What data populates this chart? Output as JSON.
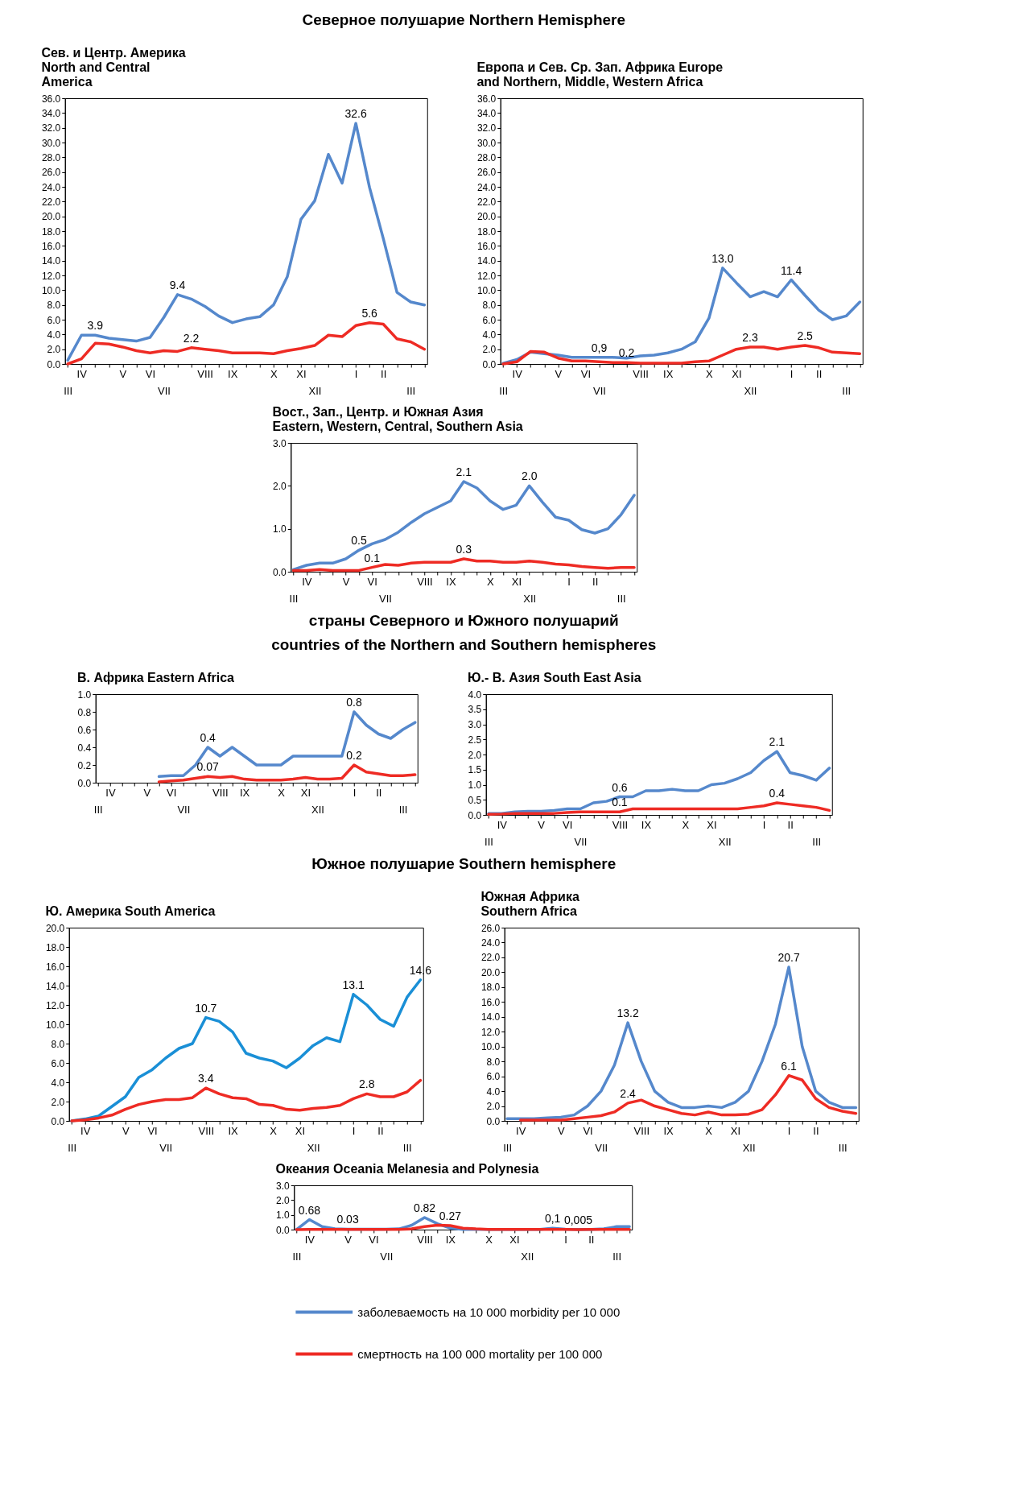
{
  "chart_data": [
    {
      "type": "line",
      "title": "Сев. и Центр. Америка\nNorth and Central\nAmerica",
      "annotations": [
        "Северное полушарие   Northern Hemisphere"
      ],
      "categories": [
        "\nIII",
        "IV",
        null,
        null,
        "V",
        null,
        "VI",
        "\nVII",
        null,
        null,
        "VIII",
        null,
        "IX",
        null,
        null,
        "X",
        null,
        "XI",
        "\nXII",
        null,
        null,
        "I",
        null,
        "II",
        null,
        "\nIII",
        null
      ],
      "ylim": [
        0,
        36
      ],
      "yticks": [
        {
          "value": 0,
          "label": "0.0"
        },
        {
          "value": 2,
          "label": "2.0"
        },
        {
          "value": 4,
          "label": "4.0"
        },
        {
          "value": 6,
          "label": "6.0"
        },
        {
          "value": 8,
          "label": "8.0"
        },
        {
          "value": 10,
          "label": "10.0"
        },
        {
          "value": 12,
          "label": "12.0"
        },
        {
          "value": 14,
          "label": "14.0"
        },
        {
          "value": 16,
          "label": "16.0"
        },
        {
          "value": 18,
          "label": "18.0"
        },
        {
          "value": 20,
          "label": "20.0"
        },
        {
          "value": 22,
          "label": "22.0"
        },
        {
          "value": 24,
          "label": "24.0"
        },
        {
          "value": 26,
          "label": "26.0"
        },
        {
          "value": 28,
          "label": "28.0"
        },
        {
          "value": 30,
          "label": "30.0"
        },
        {
          "value": 32,
          "label": "32.0"
        },
        {
          "value": 34,
          "label": "34.0"
        },
        {
          "value": 36,
          "label": "36.0"
        }
      ],
      "series": [
        {
          "color": "#5588cc",
          "values": [
            0.5,
            3.9,
            3.9,
            3.5,
            3.3,
            3.1,
            3.6,
            6.3,
            9.4,
            8.8,
            7.8,
            6.5,
            5.6,
            6.1,
            6.4,
            8.0,
            11.8,
            19.6,
            22.1,
            28.4,
            24.5,
            32.6,
            23.9,
            17.0,
            9.7,
            8.4,
            8.0
          ],
          "value_labels": [
            null,
            null,
            "3.9",
            null,
            null,
            null,
            null,
            null,
            "9.4",
            null,
            null,
            null,
            null,
            null,
            null,
            null,
            null,
            null,
            null,
            null,
            null,
            "32.6",
            null,
            null,
            null,
            null,
            null
          ]
        },
        {
          "color": "#ee2b24",
          "values": [
            0.0,
            0.7,
            2.8,
            2.7,
            2.3,
            1.8,
            1.5,
            1.8,
            1.7,
            2.2,
            2.0,
            1.8,
            1.5,
            1.5,
            1.5,
            1.4,
            1.8,
            2.1,
            2.5,
            3.9,
            3.7,
            5.2,
            5.6,
            5.4,
            3.4,
            3.0,
            2.0
          ],
          "value_labels": [
            null,
            null,
            null,
            null,
            null,
            null,
            null,
            null,
            null,
            "2.2",
            null,
            null,
            null,
            null,
            null,
            null,
            null,
            null,
            null,
            null,
            null,
            null,
            "5.6",
            null,
            null,
            null,
            null
          ]
        }
      ]
    },
    {
      "type": "line",
      "title": "Европа и Сев. Ср. Зап. Африка  Europe\nand Northern, Middle, Western Africa",
      "categories": [
        "\nIII",
        "IV",
        null,
        null,
        "V",
        null,
        "VI",
        "\nVII",
        null,
        null,
        "VIII",
        null,
        "IX",
        null,
        null,
        "X",
        null,
        "XI",
        "\nXII",
        null,
        null,
        "I",
        null,
        "II",
        null,
        "\nIII",
        null
      ],
      "ylim": [
        0,
        36
      ],
      "yticks": [
        {
          "value": 0,
          "label": "0.0"
        },
        {
          "value": 2,
          "label": "2.0"
        },
        {
          "value": 4,
          "label": "4.0"
        },
        {
          "value": 6,
          "label": "6.0"
        },
        {
          "value": 8,
          "label": "8.0"
        },
        {
          "value": 10,
          "label": "10.0"
        },
        {
          "value": 12,
          "label": "12.0"
        },
        {
          "value": 14,
          "label": "14.0"
        },
        {
          "value": 16,
          "label": "16.0"
        },
        {
          "value": 18,
          "label": "18.0"
        },
        {
          "value": 20,
          "label": "20.0"
        },
        {
          "value": 22,
          "label": "22.0"
        },
        {
          "value": 24,
          "label": "24.0"
        },
        {
          "value": 26,
          "label": "26.0"
        },
        {
          "value": 28,
          "label": "28.0"
        },
        {
          "value": 30,
          "label": "30.0"
        },
        {
          "value": 32,
          "label": "32.0"
        },
        {
          "value": 34,
          "label": "34.0"
        },
        {
          "value": 36,
          "label": "36.0"
        }
      ],
      "series": [
        {
          "color": "#5588cc",
          "values": [
            0.1,
            0.6,
            1.6,
            1.4,
            1.2,
            0.9,
            0.9,
            0.9,
            0.9,
            0.8,
            1.1,
            1.2,
            1.5,
            2.0,
            3.0,
            6.2,
            13.0,
            11.0,
            9.1,
            9.8,
            9.1,
            11.4,
            9.3,
            7.3,
            6.0,
            6.5,
            8.4
          ],
          "value_labels": [
            null,
            null,
            null,
            null,
            null,
            null,
            null,
            "0,9",
            null,
            null,
            null,
            null,
            null,
            null,
            null,
            null,
            "13.0",
            null,
            null,
            null,
            null,
            "11.4",
            null,
            null,
            null,
            null,
            null
          ]
        },
        {
          "color": "#ee2b24",
          "values": [
            0.0,
            0.3,
            1.7,
            1.6,
            0.8,
            0.4,
            0.4,
            0.3,
            0.2,
            0.2,
            0.1,
            0.1,
            0.1,
            0.1,
            0.3,
            0.4,
            1.2,
            2.0,
            2.3,
            2.3,
            2.0,
            2.3,
            2.5,
            2.2,
            1.6,
            1.5,
            1.4
          ],
          "value_labels": [
            null,
            null,
            null,
            null,
            null,
            null,
            null,
            null,
            null,
            "0.2",
            null,
            null,
            null,
            null,
            null,
            null,
            null,
            null,
            "2.3",
            null,
            null,
            null,
            "2.5",
            null,
            null,
            null,
            null
          ]
        }
      ]
    },
    {
      "type": "line",
      "title": "Вост., Зап., Центр. и Южная Азия\nEastern, Western, Central, Southern Asia",
      "categories": [
        "\nIII",
        "IV",
        null,
        null,
        "V",
        null,
        "VI",
        "\nVII",
        null,
        null,
        "VIII",
        null,
        "IX",
        null,
        null,
        "X",
        null,
        "XI",
        "\nXII",
        null,
        null,
        "I",
        null,
        "II",
        null,
        "\nIII",
        null
      ],
      "ylim": [
        0,
        3
      ],
      "yticks": [
        {
          "value": 0,
          "label": "0.0"
        },
        {
          "value": 1,
          "label": "1.0"
        },
        {
          "value": 2,
          "label": "2.0"
        },
        {
          "value": 3,
          "label": "3.0"
        }
      ],
      "series": [
        {
          "color": "#5588cc",
          "values": [
            0.05,
            0.15,
            0.2,
            0.2,
            0.3,
            0.5,
            0.65,
            0.75,
            0.92,
            1.15,
            1.35,
            1.5,
            1.65,
            2.1,
            1.95,
            1.65,
            1.45,
            1.55,
            2.0,
            1.62,
            1.27,
            1.2,
            0.98,
            0.9,
            1.0,
            1.33,
            1.78
          ],
          "value_labels": [
            null,
            null,
            null,
            null,
            null,
            "0.5",
            null,
            null,
            null,
            null,
            null,
            null,
            null,
            "2.1",
            null,
            null,
            null,
            null,
            "2.0",
            null,
            null,
            null,
            null,
            null,
            null,
            null,
            null
          ]
        },
        {
          "color": "#ee2b24",
          "values": [
            0.03,
            0.03,
            0.05,
            0.03,
            0.03,
            0.03,
            0.1,
            0.17,
            0.15,
            0.2,
            0.22,
            0.22,
            0.22,
            0.3,
            0.25,
            0.25,
            0.22,
            0.22,
            0.25,
            0.22,
            0.18,
            0.16,
            0.12,
            0.1,
            0.08,
            0.1,
            0.1
          ],
          "value_labels": [
            null,
            null,
            null,
            null,
            null,
            null,
            "0.1",
            null,
            null,
            null,
            null,
            null,
            null,
            "0.3",
            null,
            null,
            null,
            null,
            null,
            null,
            null,
            null,
            null,
            null,
            null,
            null,
            null
          ]
        }
      ]
    },
    {
      "type": "line",
      "title": "В. Африка   Eastern Africa",
      "annotations": [
        "страны Северного и Южного полушарий\ncountries of the Northern and Southern hemispheres"
      ],
      "categories": [
        "\nIII",
        "IV",
        null,
        null,
        "V",
        null,
        "VI",
        "\nVII",
        null,
        null,
        "VIII",
        null,
        "IX",
        null,
        null,
        "X",
        null,
        "XI",
        "\nXII",
        null,
        null,
        "I",
        null,
        "II",
        null,
        "\nIII",
        null
      ],
      "ylim": [
        0,
        1
      ],
      "yticks": [
        {
          "value": 0,
          "label": "0.0"
        },
        0.2,
        0.4,
        0.6,
        0.8,
        {
          "value": 1,
          "label": "1.0"
        }
      ],
      "series": [
        {
          "color": "#5588cc",
          "values": [
            null,
            null,
            null,
            null,
            null,
            0.07,
            0.08,
            0.08,
            0.2,
            0.4,
            0.3,
            0.4,
            0.3,
            0.2,
            0.2,
            0.2,
            0.3,
            0.3,
            0.3,
            0.3,
            0.3,
            0.8,
            0.65,
            0.55,
            0.5,
            0.6,
            0.68
          ],
          "value_labels": [
            null,
            null,
            null,
            null,
            null,
            null,
            null,
            null,
            null,
            "0.4",
            null,
            null,
            null,
            null,
            null,
            null,
            null,
            null,
            null,
            null,
            null,
            "0.8",
            null,
            null,
            null,
            null,
            null
          ]
        },
        {
          "color": "#ee2b24",
          "values": [
            null,
            null,
            null,
            null,
            null,
            0.01,
            0.02,
            0.03,
            0.05,
            0.07,
            0.06,
            0.07,
            0.04,
            0.03,
            0.03,
            0.03,
            0.04,
            0.06,
            0.04,
            0.04,
            0.05,
            0.2,
            0.12,
            0.1,
            0.08,
            0.08,
            0.09
          ],
          "value_labels": [
            null,
            null,
            null,
            null,
            null,
            null,
            null,
            null,
            null,
            "0.07",
            null,
            null,
            null,
            null,
            null,
            null,
            null,
            null,
            null,
            null,
            null,
            "0.2",
            null,
            null,
            null,
            null,
            null
          ]
        }
      ]
    },
    {
      "type": "line",
      "title": "Ю.- В. Азия   South East Asia",
      "categories": [
        "\nIII",
        "IV",
        null,
        null,
        "V",
        null,
        "VI",
        "\nVII",
        null,
        null,
        "VIII",
        null,
        "IX",
        null,
        null,
        "X",
        null,
        "XI",
        "\nXII",
        null,
        null,
        "I",
        null,
        "II",
        null,
        "\nIII",
        null
      ],
      "ylim": [
        0,
        4
      ],
      "yticks": [
        {
          "value": 0,
          "label": "0.0"
        },
        0.5,
        {
          "value": 1,
          "label": "1.0"
        },
        1.5,
        {
          "value": 2,
          "label": "2.0"
        },
        2.5,
        {
          "value": 3,
          "label": "3.0"
        },
        3.5,
        {
          "value": 4,
          "label": "4.0"
        }
      ],
      "series": [
        {
          "color": "#5588cc",
          "values": [
            0.05,
            0.05,
            0.1,
            0.12,
            0.12,
            0.15,
            0.2,
            0.2,
            0.4,
            0.45,
            0.6,
            0.6,
            0.8,
            0.8,
            0.85,
            0.8,
            0.8,
            1.0,
            1.05,
            1.2,
            1.4,
            1.8,
            2.1,
            1.4,
            1.3,
            1.15,
            1.55
          ],
          "value_labels": [
            null,
            null,
            null,
            null,
            null,
            null,
            null,
            null,
            null,
            null,
            "0.6",
            null,
            null,
            null,
            null,
            null,
            null,
            null,
            null,
            null,
            null,
            null,
            "2.1",
            null,
            null,
            null,
            null
          ]
        },
        {
          "color": "#ee2b24",
          "values": [
            0.02,
            0.03,
            0.05,
            0.05,
            0.05,
            0.05,
            0.08,
            0.1,
            0.1,
            0.1,
            0.1,
            0.2,
            0.2,
            0.2,
            0.2,
            0.2,
            0.2,
            0.2,
            0.2,
            0.2,
            0.25,
            0.3,
            0.4,
            0.35,
            0.3,
            0.25,
            0.15
          ],
          "value_labels": [
            null,
            null,
            null,
            null,
            null,
            null,
            null,
            null,
            null,
            null,
            "0.1",
            null,
            null,
            null,
            null,
            null,
            null,
            null,
            null,
            null,
            null,
            null,
            "0.4",
            null,
            null,
            null,
            null
          ]
        }
      ]
    },
    {
      "type": "line",
      "title": "Ю. Америка    South America",
      "annotations": [
        "Южное полушарие   Southern hemisphere"
      ],
      "categories": [
        "\nIII",
        "IV",
        null,
        null,
        "V",
        null,
        "VI",
        "\nVII",
        null,
        null,
        "VIII",
        null,
        "IX",
        null,
        null,
        "X",
        null,
        "XI",
        "\nXII",
        null,
        null,
        "I",
        null,
        "II",
        null,
        "\nIII",
        null
      ],
      "ylim": [
        0,
        20
      ],
      "yticks": [
        {
          "value": 0,
          "label": "0.0"
        },
        {
          "value": 2,
          "label": "2.0"
        },
        {
          "value": 4,
          "label": "4.0"
        },
        {
          "value": 6,
          "label": "6.0"
        },
        {
          "value": 8,
          "label": "8.0"
        },
        {
          "value": 10,
          "label": "10.0"
        },
        {
          "value": 12,
          "label": "12.0"
        },
        {
          "value": 14,
          "label": "14.0"
        },
        {
          "value": 16,
          "label": "16.0"
        },
        {
          "value": 18,
          "label": "18.0"
        },
        {
          "value": 20,
          "label": "20.0"
        }
      ],
      "series": [
        {
          "color": "#1a8fd6",
          "values": [
            0.0,
            0.2,
            0.5,
            1.5,
            2.5,
            4.5,
            5.3,
            6.5,
            7.5,
            8.0,
            10.7,
            10.3,
            9.2,
            7.0,
            6.5,
            6.2,
            5.5,
            6.5,
            7.8,
            8.6,
            8.2,
            13.1,
            12.0,
            10.5,
            9.8,
            12.8,
            14.6
          ],
          "value_labels": [
            null,
            null,
            null,
            null,
            null,
            null,
            null,
            null,
            null,
            null,
            "10.7",
            null,
            null,
            null,
            null,
            null,
            null,
            null,
            null,
            null,
            null,
            "13.1",
            null,
            null,
            null,
            null,
            "14.6"
          ]
        },
        {
          "color": "#ee2b24",
          "values": [
            0.0,
            0.1,
            0.3,
            0.6,
            1.2,
            1.7,
            2.0,
            2.2,
            2.2,
            2.4,
            3.4,
            2.8,
            2.4,
            2.3,
            1.7,
            1.6,
            1.2,
            1.1,
            1.3,
            1.4,
            1.6,
            2.3,
            2.8,
            2.5,
            2.5,
            3.0,
            4.2
          ],
          "value_labels": [
            null,
            null,
            null,
            null,
            null,
            null,
            null,
            null,
            null,
            null,
            "3.4",
            null,
            null,
            null,
            null,
            null,
            null,
            null,
            null,
            null,
            null,
            null,
            "2.8",
            null,
            null,
            null,
            null
          ]
        }
      ]
    },
    {
      "type": "line",
      "title": "Южная  Африка\nSouthern  Africa",
      "categories": [
        "\nIII",
        "IV",
        null,
        null,
        "V",
        null,
        "VI",
        "\nVII",
        null,
        null,
        "VIII",
        null,
        "IX",
        null,
        null,
        "X",
        null,
        "XI",
        "\nXII",
        null,
        null,
        "I",
        null,
        "II",
        null,
        "\nIII",
        null
      ],
      "ylim": [
        0,
        26
      ],
      "yticks": [
        {
          "value": 0,
          "label": "0.0"
        },
        {
          "value": 2,
          "label": "2.0"
        },
        {
          "value": 4,
          "label": "4.0"
        },
        {
          "value": 6,
          "label": "6.0"
        },
        {
          "value": 8,
          "label": "8.0"
        },
        {
          "value": 10,
          "label": "10.0"
        },
        {
          "value": 12,
          "label": "12.0"
        },
        {
          "value": 14,
          "label": "14.0"
        },
        {
          "value": 16,
          "label": "16.0"
        },
        {
          "value": 18,
          "label": "18.0"
        },
        {
          "value": 20,
          "label": "20.0"
        },
        {
          "value": 22,
          "label": "22.0"
        },
        {
          "value": 24,
          "label": "24.0"
        },
        {
          "value": 26,
          "label": "26.0"
        }
      ],
      "series": [
        {
          "color": "#5588cc",
          "values": [
            0.3,
            0.3,
            0.3,
            0.4,
            0.5,
            0.8,
            2.0,
            4.0,
            7.5,
            13.2,
            8.0,
            4.0,
            2.5,
            1.8,
            1.8,
            2.0,
            1.8,
            2.5,
            4.0,
            8.0,
            13.0,
            20.7,
            10.0,
            4.0,
            2.5,
            1.8,
            1.8
          ],
          "value_labels": [
            null,
            null,
            null,
            null,
            null,
            null,
            null,
            null,
            null,
            "13.2",
            null,
            null,
            null,
            null,
            null,
            null,
            null,
            null,
            null,
            null,
            null,
            "20.7",
            null,
            null,
            null,
            null,
            null
          ]
        },
        {
          "color": "#ee2b24",
          "values": [
            null,
            0.1,
            0.1,
            0.1,
            0.1,
            0.3,
            0.5,
            0.7,
            1.2,
            2.4,
            2.8,
            2.0,
            1.5,
            1.0,
            0.8,
            1.2,
            0.8,
            0.8,
            0.9,
            1.5,
            3.5,
            6.1,
            5.5,
            3.0,
            1.8,
            1.3,
            1.0
          ],
          "value_labels": [
            null,
            null,
            null,
            null,
            null,
            null,
            null,
            null,
            null,
            "2.4",
            null,
            null,
            null,
            null,
            null,
            null,
            null,
            null,
            null,
            null,
            null,
            "6.1",
            null,
            null,
            null,
            null,
            null
          ]
        }
      ]
    },
    {
      "type": "line",
      "title": "Океания  Oceania Melanesia and Polynesia",
      "legend": "bottom",
      "categories": [
        "\nIII",
        "IV",
        null,
        null,
        "V",
        null,
        "VI",
        "\nVII",
        null,
        null,
        "VIII",
        null,
        "IX",
        null,
        null,
        "X",
        null,
        "XI",
        "\nXII",
        null,
        null,
        "I",
        null,
        "II",
        null,
        "\nIII",
        null
      ],
      "ylim": [
        0,
        3
      ],
      "yticks": [
        {
          "value": 0,
          "label": "0.0"
        },
        {
          "value": 1,
          "label": "1.0"
        },
        {
          "value": 2,
          "label": "2.0"
        },
        {
          "value": 3,
          "label": "3.0"
        }
      ],
      "series": [
        {
          "name": "заболеваемость на 10 000     morbidity per 10 000",
          "color": "#5588cc",
          "values": [
            0.0,
            0.68,
            0.2,
            0.05,
            0.03,
            0.03,
            0.03,
            0.03,
            0.05,
            0.3,
            0.82,
            0.4,
            0.1,
            0.02,
            0.02,
            0.02,
            0.02,
            0.02,
            0.02,
            0.02,
            0.1,
            0.03,
            0.02,
            0.02,
            0.05,
            0.2,
            0.2
          ],
          "value_labels": [
            null,
            "0.68",
            null,
            null,
            "0.03",
            null,
            null,
            null,
            null,
            null,
            "0.82",
            null,
            null,
            null,
            null,
            null,
            null,
            null,
            null,
            null,
            "0,1",
            null,
            null,
            null,
            null,
            null,
            null
          ]
        },
        {
          "name": "смертность на 100 000   mortality per 100 000",
          "color": "#ee2b24",
          "values": [
            0.0,
            0.02,
            0.02,
            0.02,
            0.02,
            0.02,
            0.02,
            0.02,
            0.02,
            0.05,
            0.2,
            0.3,
            0.27,
            0.1,
            0.05,
            0.02,
            0.02,
            0.02,
            0.02,
            0.02,
            0.02,
            0.02,
            0.005,
            0.01,
            0.01,
            0.01,
            0.01
          ],
          "value_labels": [
            null,
            null,
            null,
            null,
            null,
            null,
            null,
            null,
            null,
            null,
            null,
            null,
            "0.27",
            null,
            null,
            null,
            null,
            null,
            null,
            null,
            null,
            null,
            "0,005",
            null,
            null,
            null,
            null
          ]
        }
      ]
    }
  ]
}
